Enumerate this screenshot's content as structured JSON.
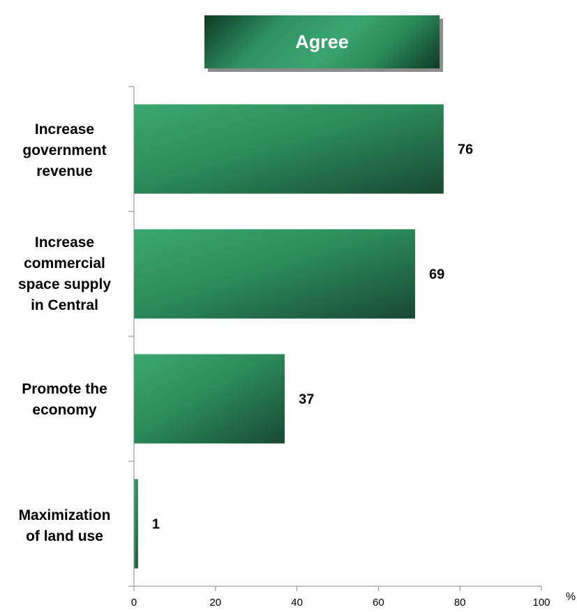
{
  "chart_data": {
    "type": "bar",
    "orientation": "horizontal",
    "categories": [
      "Increase\ngovernment\nrevenue",
      "Increase\ncommercial\nspace supply\nin Central",
      "Promote the\neconomy",
      "Maximization\nof land use"
    ],
    "series": [
      {
        "name": "Agree",
        "values": [
          76,
          69,
          37,
          1
        ],
        "color": "#2e8b57"
      }
    ],
    "data_labels": [
      "76",
      "69",
      "37",
      "1"
    ],
    "x_ticks": [
      "0",
      "20",
      "40",
      "60",
      "80",
      "100"
    ],
    "x_unit": "%",
    "xlim": [
      0,
      100
    ],
    "legend_position": "top",
    "grid": false
  }
}
